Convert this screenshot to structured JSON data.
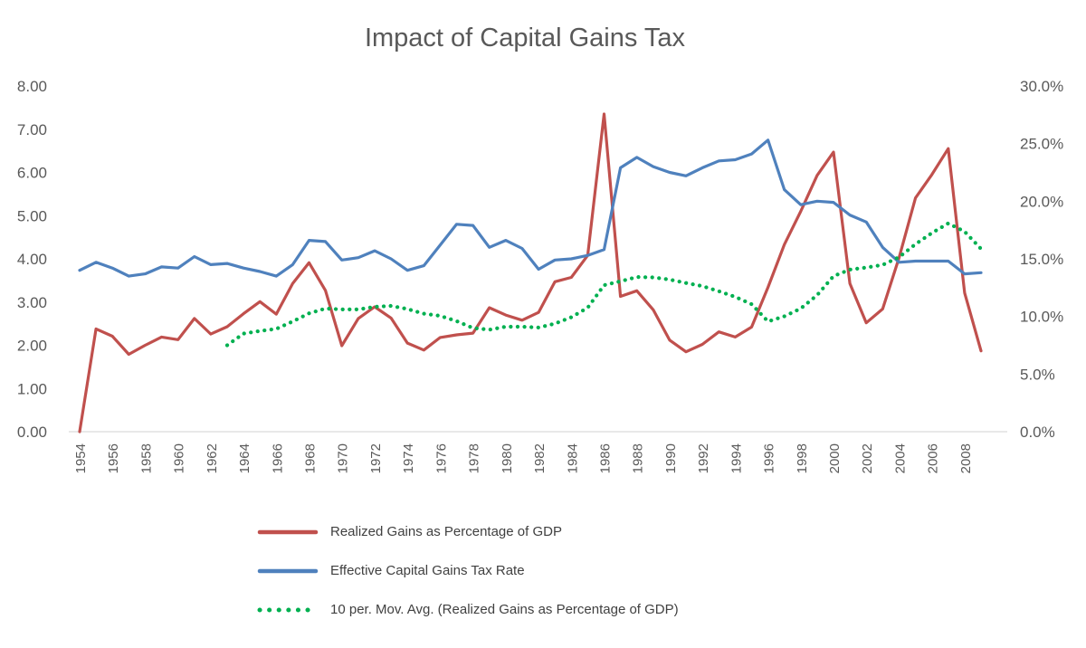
{
  "chart_data": {
    "type": "line",
    "title": "Impact of Capital Gains Tax",
    "x_min": 1954,
    "x_max": 2009,
    "x_ticks": {
      "start": 1954,
      "end": 2008,
      "step": 2
    },
    "left_axis": {
      "min": 0,
      "max": 8,
      "step": 1,
      "tick_labels": [
        "0.00",
        "1.00",
        "2.00",
        "3.00",
        "4.00",
        "5.00",
        "6.00",
        "7.00",
        "8.00"
      ]
    },
    "right_axis": {
      "min": 0,
      "max": 30,
      "step": 5,
      "tick_labels": [
        "0.0%",
        "5.0%",
        "10.0%",
        "15.0%",
        "20.0%",
        "25.0%",
        "30.0%"
      ]
    },
    "gridlines": false,
    "legend_position": "bottom",
    "colors": {
      "title_text": "#595959",
      "tick_text": "#595959",
      "legend_text": "#404040",
      "axis_line": "#D9D9D9",
      "series_red": "#C0504D",
      "series_blue": "#4F81BD",
      "series_green": "#00B050"
    },
    "series": [
      {
        "name": "Realized Gains as Percentage of GDP",
        "axis": "left",
        "color": "#C0504D",
        "style": "solid",
        "x_start": 1954,
        "values": [
          0.0,
          2.38,
          2.21,
          1.79,
          2.0,
          2.19,
          2.13,
          2.62,
          2.26,
          2.43,
          2.73,
          3.01,
          2.72,
          3.43,
          3.91,
          3.27,
          1.99,
          2.62,
          2.89,
          2.63,
          2.05,
          1.89,
          2.18,
          2.24,
          2.28,
          2.87,
          2.7,
          2.58,
          2.76,
          3.47,
          3.57,
          4.08,
          7.35,
          3.13,
          3.26,
          2.82,
          2.12,
          1.85,
          2.02,
          2.31,
          2.19,
          2.42,
          3.34,
          4.33,
          5.1,
          5.93,
          6.47,
          3.43,
          2.52,
          2.84,
          4.03,
          5.41,
          5.95,
          6.55,
          3.21,
          1.87
        ]
      },
      {
        "name": "Effective Capital Gains Tax Rate",
        "axis": "right",
        "color": "#4F81BD",
        "style": "solid",
        "x_start": 1954,
        "values": [
          14.0,
          14.7,
          14.2,
          13.5,
          13.7,
          14.3,
          14.2,
          15.2,
          14.5,
          14.6,
          14.2,
          13.9,
          13.5,
          14.5,
          16.6,
          16.5,
          14.9,
          15.1,
          15.7,
          15.0,
          14.0,
          14.4,
          16.2,
          18.0,
          17.9,
          16.0,
          16.6,
          15.9,
          14.1,
          14.9,
          15.0,
          15.3,
          15.8,
          22.9,
          23.8,
          23.0,
          22.5,
          22.2,
          22.9,
          23.5,
          23.6,
          24.1,
          25.3,
          21.0,
          19.7,
          20.0,
          19.9,
          18.8,
          18.2,
          16.0,
          14.7,
          14.8,
          14.8,
          14.8,
          13.7,
          13.8
        ]
      },
      {
        "name": "10 per. Mov. Avg. (Realized Gains as Percentage of GDP)",
        "axis": "left",
        "color": "#00B050",
        "style": "dotted",
        "x_start": 1963,
        "values": [
          2.0,
          2.27,
          2.33,
          2.38,
          2.55,
          2.74,
          2.85,
          2.83,
          2.83,
          2.89,
          2.91,
          2.84,
          2.73,
          2.68,
          2.56,
          2.4,
          2.36,
          2.43,
          2.43,
          2.41,
          2.5,
          2.65,
          2.87,
          3.39,
          3.48,
          3.58,
          3.57,
          3.52,
          3.44,
          3.37,
          3.25,
          3.12,
          2.95,
          2.55,
          2.67,
          2.85,
          3.16,
          3.6,
          3.75,
          3.8,
          3.86,
          4.04,
          4.34,
          4.6,
          4.82,
          4.63,
          4.23
        ]
      }
    ]
  }
}
